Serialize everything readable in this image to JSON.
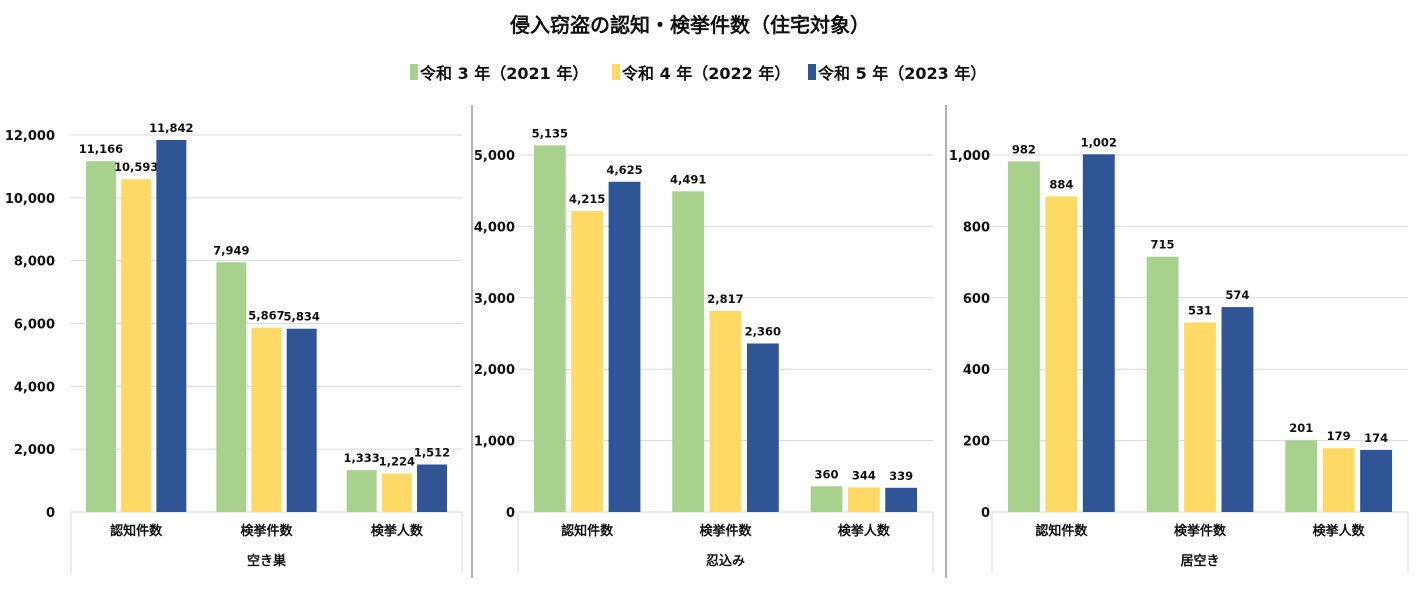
{
  "chart_data": [
    {
      "type": "bar",
      "group_label": "空き巣",
      "categories": [
        "認知件数",
        "検挙件数",
        "検挙人数"
      ],
      "ylim": [
        0,
        12000
      ],
      "yticks": [
        0,
        2000,
        4000,
        6000,
        8000,
        10000,
        12000
      ],
      "grid": true,
      "series": [
        {
          "name": "令和３年（2021年）",
          "values": [
            11166,
            7949,
            1333
          ]
        },
        {
          "name": "令和４年（2022年）",
          "values": [
            10593,
            5867,
            1224
          ]
        },
        {
          "name": "令和５年（2023年）",
          "values": [
            11842,
            5834,
            1512
          ]
        }
      ]
    },
    {
      "type": "bar",
      "group_label": "忍込み",
      "categories": [
        "認知件数",
        "検挙件数",
        "検挙人数"
      ],
      "ylim": [
        0,
        5000
      ],
      "yticks": [
        0,
        1000,
        2000,
        3000,
        4000,
        5000
      ],
      "grid": true,
      "series": [
        {
          "name": "令和３年（2021年）",
          "values": [
            5135,
            4491,
            360
          ]
        },
        {
          "name": "令和４年（2022年）",
          "values": [
            4215,
            2817,
            344
          ]
        },
        {
          "name": "令和５年（2023年）",
          "values": [
            4625,
            2360,
            339
          ]
        }
      ]
    },
    {
      "type": "bar",
      "group_label": "居空き",
      "categories": [
        "認知件数",
        "検挙件数",
        "検挙人数"
      ],
      "ylim": [
        0,
        1000
      ],
      "yticks": [
        0,
        200,
        400,
        600,
        800,
        1000
      ],
      "grid": true,
      "series": [
        {
          "name": "令和３年（2021年）",
          "values": [
            982,
            715,
            201
          ]
        },
        {
          "name": "令和４年（2022年）",
          "values": [
            884,
            531,
            179
          ]
        },
        {
          "name": "令和５年（2023年）",
          "values": [
            1002,
            574,
            174
          ]
        }
      ]
    }
  ],
  "title": "侵入窃盗の認知・検挙件数（住宅対象）",
  "legend": {
    "placement": "top",
    "items": [
      "令和 3 年（2021 年）",
      "令和 4 年（2022 年）",
      "令和 5 年（2023 年）"
    ]
  },
  "colors": [
    "#a9d18e",
    "#ffd966",
    "#2f5597"
  ]
}
